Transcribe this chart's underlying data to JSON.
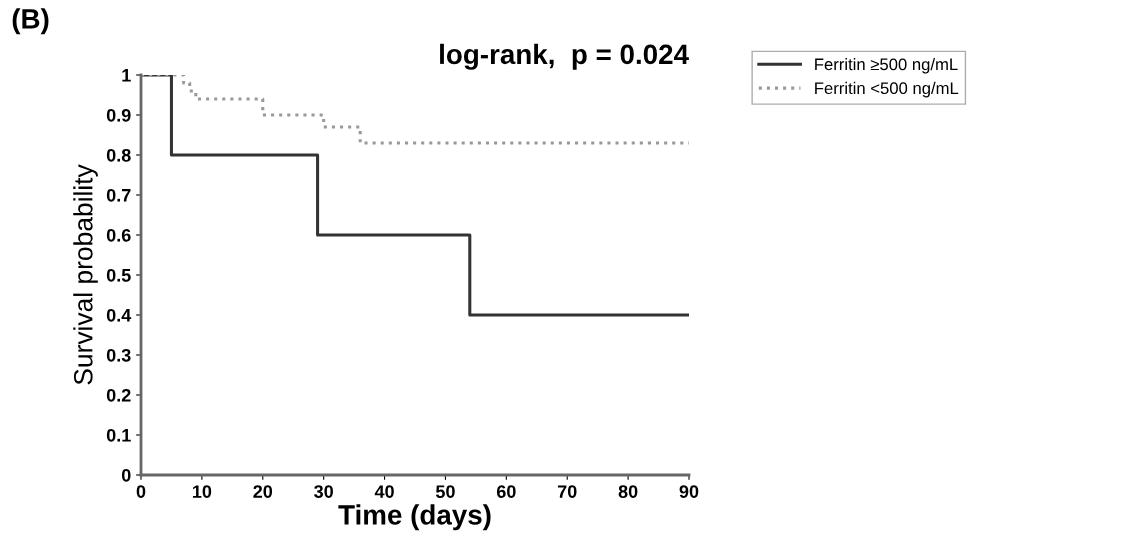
{
  "chart_data": {
    "type": "step",
    "title": "log-rank,  p = 0.024",
    "xlabel": "Time (days)",
    "ylabel": "Survival probability",
    "annotations": [
      "(B)"
    ],
    "series": [
      {
        "name": "Ferritin ≥500 ng/mL",
        "color": "#333333",
        "line_style": "solid",
        "x": [
          0,
          5,
          29,
          54,
          90
        ],
        "values": [
          1,
          0.8,
          0.6,
          0.4,
          0.4
        ]
      },
      {
        "name": "Ferritin <500 ng/mL",
        "color": "#999999",
        "line_style": "dotted",
        "x": [
          0,
          7,
          8,
          9,
          20,
          30,
          36,
          90
        ],
        "values": [
          1,
          0.98,
          0.96,
          0.94,
          0.9,
          0.87,
          0.83,
          0.83
        ]
      }
    ],
    "xlim": [
      0,
      90
    ],
    "xticks": [
      0,
      10,
      20,
      30,
      40,
      50,
      60,
      70,
      80,
      90
    ],
    "ylim": [
      0,
      1
    ],
    "yticks": [
      0,
      0.1,
      0.2,
      0.3,
      0.4,
      0.5,
      0.6,
      0.7,
      0.8,
      0.9,
      1
    ],
    "grid": false,
    "legend": "top right",
    "marker": "none"
  }
}
